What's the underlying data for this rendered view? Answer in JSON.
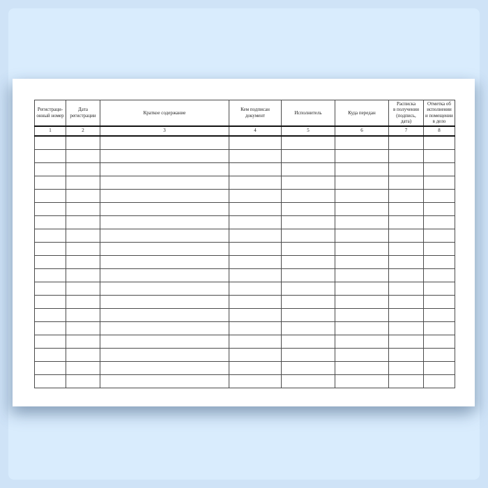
{
  "colors": {
    "background_outer": "#cfe3f7",
    "background_inner": "#d9ecfd",
    "page": "#ffffff",
    "grid_line": "#4a4a4a",
    "heavy_line": "#111111",
    "text": "#222222"
  },
  "table": {
    "columns": [
      {
        "header": "Регистраци-\nонный номер",
        "num": "1"
      },
      {
        "header": "Дата\nрегистрации",
        "num": "2"
      },
      {
        "header": "Краткое содержание",
        "num": "3"
      },
      {
        "header": "Кем подписан\nдокумент",
        "num": "4"
      },
      {
        "header": "Исполнитель",
        "num": "5"
      },
      {
        "header": "Куда передан",
        "num": "6"
      },
      {
        "header": "Расписка\nв получении\n(подпись,\nдата)",
        "num": "7"
      },
      {
        "header": "Отметка об\nисполнении\nи помещении\nв дело",
        "num": "8"
      }
    ],
    "body_row_count": 19
  }
}
